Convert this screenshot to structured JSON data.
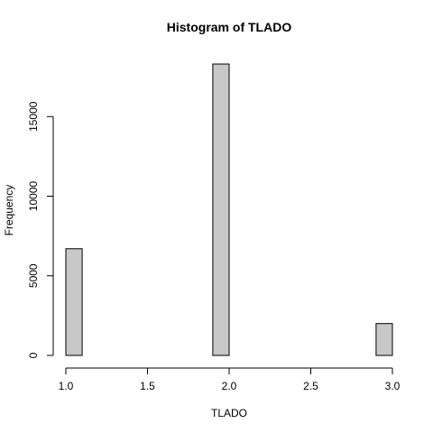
{
  "chart_data": {
    "type": "bar",
    "title": "Histogram of TLADO",
    "xlabel": "TLADO",
    "ylabel": "Frequency",
    "bins": [
      {
        "x0": 1.0,
        "x1": 1.1,
        "count": 6700
      },
      {
        "x0": 1.1,
        "x1": 1.2,
        "count": 0
      },
      {
        "x0": 1.2,
        "x1": 1.3,
        "count": 0
      },
      {
        "x0": 1.3,
        "x1": 1.4,
        "count": 0
      },
      {
        "x0": 1.4,
        "x1": 1.5,
        "count": 0
      },
      {
        "x0": 1.5,
        "x1": 1.6,
        "count": 0
      },
      {
        "x0": 1.6,
        "x1": 1.7,
        "count": 0
      },
      {
        "x0": 1.7,
        "x1": 1.8,
        "count": 0
      },
      {
        "x0": 1.8,
        "x1": 1.9,
        "count": 0
      },
      {
        "x0": 1.9,
        "x1": 2.0,
        "count": 18300
      },
      {
        "x0": 2.0,
        "x1": 2.1,
        "count": 0
      },
      {
        "x0": 2.1,
        "x1": 2.2,
        "count": 0
      },
      {
        "x0": 2.2,
        "x1": 2.3,
        "count": 0
      },
      {
        "x0": 2.3,
        "x1": 2.4,
        "count": 0
      },
      {
        "x0": 2.4,
        "x1": 2.5,
        "count": 0
      },
      {
        "x0": 2.5,
        "x1": 2.6,
        "count": 0
      },
      {
        "x0": 2.6,
        "x1": 2.7,
        "count": 0
      },
      {
        "x0": 2.7,
        "x1": 2.8,
        "count": 0
      },
      {
        "x0": 2.8,
        "x1": 2.9,
        "count": 0
      },
      {
        "x0": 2.9,
        "x1": 3.0,
        "count": 2000
      }
    ],
    "xticks": [
      1.0,
      1.5,
      2.0,
      2.5,
      3.0
    ],
    "xtick_labels": [
      "1.0",
      "1.5",
      "2.0",
      "2.5",
      "3.0"
    ],
    "yticks": [
      0,
      5000,
      10000,
      15000
    ],
    "ytick_labels": [
      "0",
      "5000",
      "10000",
      "15000"
    ],
    "xlim": [
      1.0,
      3.0
    ],
    "ylim": [
      0,
      18300
    ],
    "grid": false,
    "legend": "none",
    "colors": {
      "bar_fill": "#c8c8c8",
      "bar_stroke": "#000000"
    }
  }
}
